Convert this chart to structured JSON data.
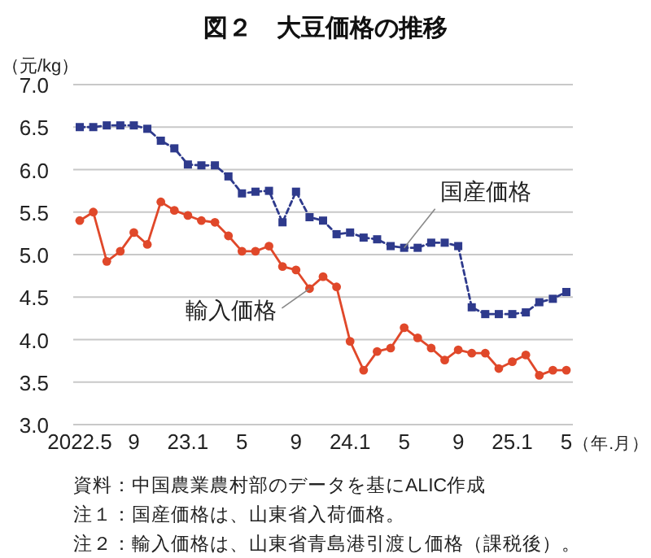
{
  "chart_data": {
    "type": "line",
    "title": "図２　大豆価格の推移",
    "ylabel": "（元/kg）",
    "xlabel": "（年.月）",
    "categories": [
      "2022.5",
      null,
      null,
      null,
      "9",
      null,
      null,
      null,
      "23.1",
      null,
      null,
      null,
      "5",
      null,
      null,
      null,
      "9",
      null,
      null,
      null,
      "24.1",
      null,
      null,
      null,
      "5",
      null,
      null,
      null,
      "9",
      null,
      null,
      null,
      "25.1",
      null,
      null,
      null,
      "5"
    ],
    "series": [
      {
        "name": "国産価格",
        "color": "#2e3a8c",
        "marker": "square",
        "line_style": "dashed",
        "values": [
          6.5,
          6.5,
          6.52,
          6.52,
          6.52,
          6.48,
          6.34,
          6.25,
          6.06,
          6.05,
          6.05,
          5.92,
          5.72,
          5.74,
          5.75,
          5.38,
          5.74,
          5.44,
          5.4,
          5.24,
          5.26,
          5.2,
          5.18,
          5.1,
          5.08,
          5.08,
          5.14,
          5.14,
          5.1,
          4.38,
          4.3,
          4.3,
          4.3,
          4.32,
          4.44,
          4.48,
          4.56
        ]
      },
      {
        "name": "輸入価格",
        "color": "#e0482a",
        "marker": "circle",
        "line_style": "solid",
        "values": [
          5.4,
          5.5,
          4.92,
          5.04,
          5.26,
          5.12,
          5.62,
          5.52,
          5.46,
          5.4,
          5.38,
          5.22,
          5.04,
          5.04,
          5.1,
          4.86,
          4.82,
          4.6,
          4.74,
          4.62,
          3.98,
          3.64,
          3.86,
          3.9,
          4.14,
          4.02,
          3.9,
          3.76,
          3.88,
          3.84,
          3.84,
          3.66,
          3.74,
          3.82,
          3.58,
          3.64,
          3.64
        ]
      }
    ],
    "ylim": [
      3.0,
      7.0
    ],
    "yticks": [
      {
        "value": 3,
        "label": "3.0"
      },
      {
        "value": 3.5,
        "label": "3.5"
      },
      {
        "value": 4,
        "label": "4.0"
      },
      {
        "value": 4.5,
        "label": "4.5"
      },
      {
        "value": 5,
        "label": "5.0"
      },
      {
        "value": 5.5,
        "label": "5.5"
      },
      {
        "value": 6,
        "label": "6.0"
      },
      {
        "value": 6.5,
        "label": "6.5"
      },
      {
        "value": 7,
        "label": "7.0"
      }
    ],
    "grid": "y",
    "annotations": [
      "資料：中国農業農村部のデータを基にALIC作成",
      "注１：国産価格は、山東省入荷価格。",
      "注２：輸入価格は、山東省青島港引渡し価格（課税後）。"
    ]
  }
}
